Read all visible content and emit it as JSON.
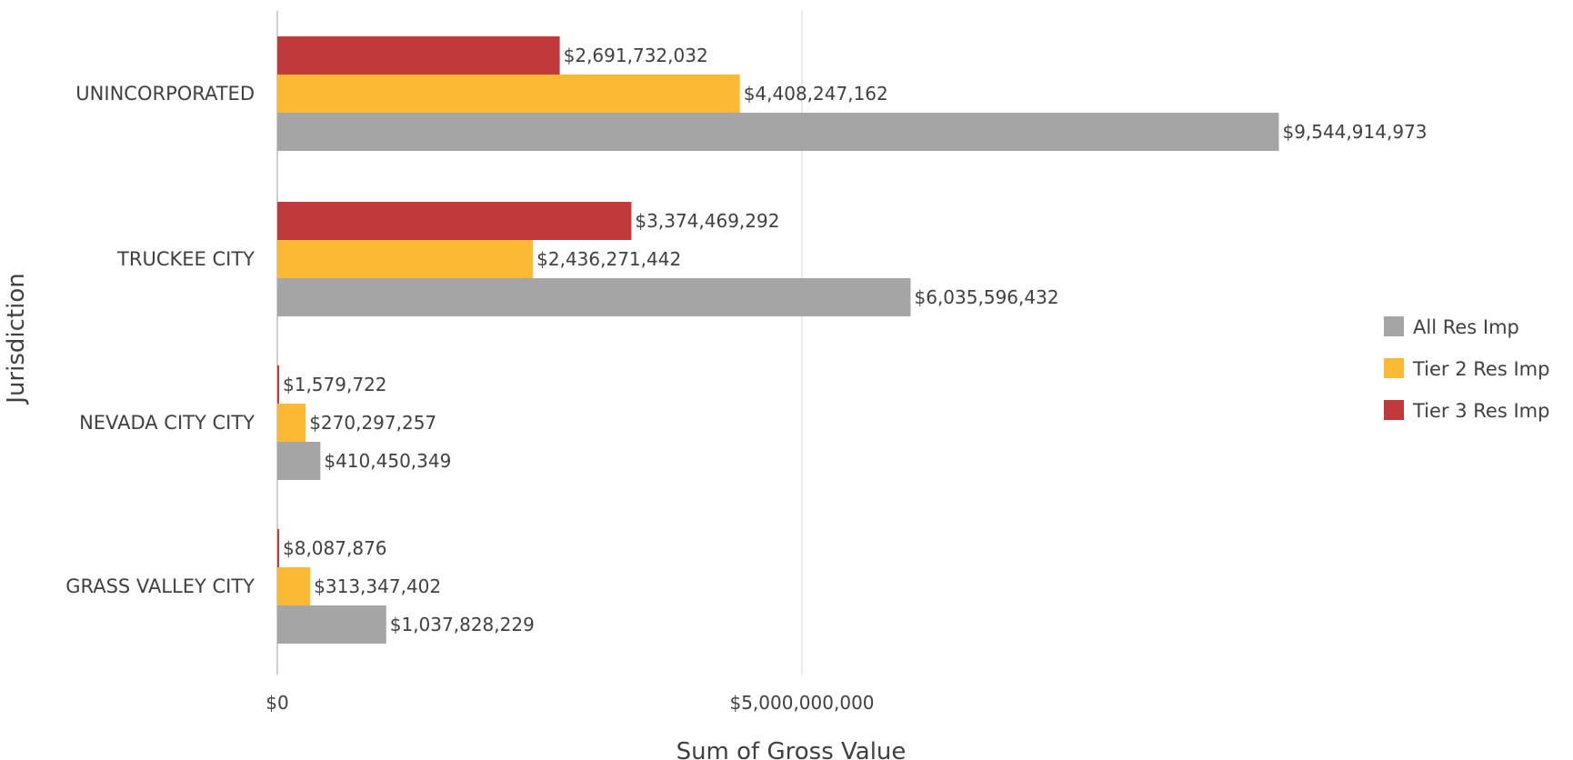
{
  "chart_data": {
    "type": "bar",
    "orientation": "horizontal",
    "xlabel": "Sum of Gross Value",
    "ylabel": "Jurisdiction",
    "xlim": [
      0,
      11000000000
    ],
    "x_ticks": [
      {
        "value": 0,
        "label": "$0"
      },
      {
        "value": 5000000000,
        "label": "$5,000,000,000"
      }
    ],
    "grid": "vertical",
    "legend_position": "right",
    "categories": [
      "UNINCORPORATED",
      "TRUCKEE CITY",
      "NEVADA CITY CITY",
      "GRASS VALLEY CITY"
    ],
    "series": [
      {
        "name": "Tier 3 Res Imp",
        "color": "#c0393b",
        "values": [
          2691732032,
          3374469292,
          1579722,
          8087876
        ],
        "labels": [
          "$2,691,732,032",
          "$3,374,469,292",
          "$1,579,722",
          "$8,087,876"
        ]
      },
      {
        "name": "Tier 2 Res Imp",
        "color": "#fbb934",
        "values": [
          4408247162,
          2436271442,
          270297257,
          313347402
        ],
        "labels": [
          "$4,408,247,162",
          "$2,436,271,442",
          "$270,297,257",
          "$313,347,402"
        ]
      },
      {
        "name": "All Res Imp",
        "color": "#a5a5a5",
        "values": [
          9544914973,
          6035596432,
          410450349,
          1037828229
        ],
        "labels": [
          "$9,544,914,973",
          "$6,035,596,432",
          "$410,450,349",
          "$1,037,828,229"
        ]
      }
    ],
    "legend_order": [
      "All Res Imp",
      "Tier 2 Res Imp",
      "Tier 3 Res Imp"
    ]
  }
}
